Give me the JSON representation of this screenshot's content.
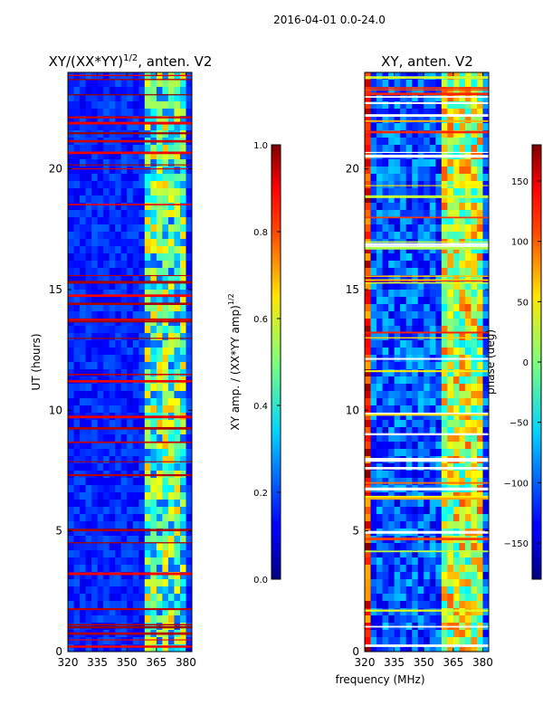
{
  "suptitle": "2016-04-01 0.0-24.0",
  "shared_xlabel": "frequency (MHz)",
  "chart_data": [
    {
      "type": "heatmap",
      "title_prefix": "XY/(XX*YY)",
      "title_sup": "1/2",
      "title_suffix": ", anten. V2",
      "xlabel": "",
      "ylabel": "UT (hours)",
      "xlim": [
        320,
        383
      ],
      "ylim": [
        0,
        24
      ],
      "x_ticks": [
        320,
        335,
        350,
        365,
        380
      ],
      "y_ticks": [
        0,
        5,
        10,
        15,
        20
      ],
      "colorbar": {
        "label_prefix": "XY amp. / (XX*YY amp)",
        "label_sup": "1/2",
        "range": [
          0.0,
          1.0
        ],
        "ticks": [
          "0.0",
          "0.2",
          "0.4",
          "0.6",
          "0.8",
          "1.0"
        ]
      }
    },
    {
      "type": "heatmap",
      "title": "XY, anten. V2",
      "xlabel": "frequency (MHz)",
      "ylabel": "",
      "xlim": [
        320,
        383
      ],
      "ylim": [
        0,
        24
      ],
      "x_ticks": [
        320,
        335,
        350,
        365,
        380
      ],
      "y_ticks": [
        0,
        5,
        10,
        15,
        20
      ],
      "colorbar": {
        "label": "phase (deg)",
        "range": [
          -180,
          180
        ],
        "ticks": [
          "-150",
          "-100",
          "-50",
          "0",
          "50",
          "100",
          "150"
        ]
      }
    }
  ]
}
